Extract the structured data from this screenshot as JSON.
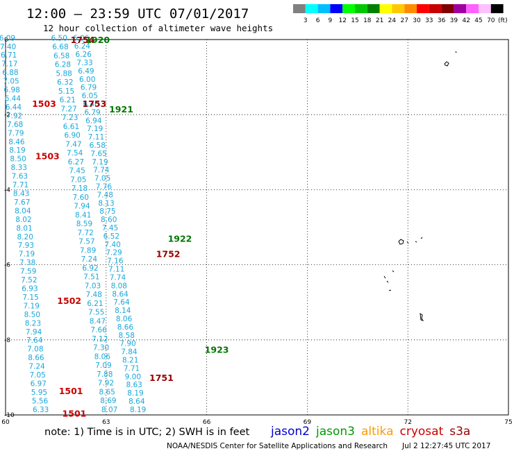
{
  "header": {
    "title": "12:00 – 23:59 UTC 07/01/2017",
    "subtitle": "12 hour collection of altimeter wave heights"
  },
  "legend": {
    "unit": "(ft)",
    "bins": [
      {
        "label": "3",
        "color": "#808080"
      },
      {
        "label": "6",
        "color": "#00ffff"
      },
      {
        "label": "9",
        "color": "#00bfff"
      },
      {
        "label": "12",
        "color": "#0000ff"
      },
      {
        "label": "15",
        "color": "#00ff00"
      },
      {
        "label": "18",
        "color": "#00c800"
      },
      {
        "label": "21",
        "color": "#008000"
      },
      {
        "label": "24",
        "color": "#ffff00"
      },
      {
        "label": "27",
        "color": "#ffc800"
      },
      {
        "label": "30",
        "color": "#ff8c00"
      },
      {
        "label": "33",
        "color": "#ff0000"
      },
      {
        "label": "36",
        "color": "#c80000"
      },
      {
        "label": "39",
        "color": "#800000"
      },
      {
        "label": "42",
        "color": "#a000a0"
      },
      {
        "label": "45",
        "color": "#ff60ff"
      },
      {
        "label": "70",
        "color": "#ffc0ff"
      },
      {
        "label": "",
        "color": "#000000"
      }
    ]
  },
  "axes": {
    "x_ticks": [
      "60",
      "63",
      "66",
      "69",
      "72",
      "75"
    ],
    "y_ticks": [
      "0",
      "-2",
      "-4",
      "-6",
      "-8",
      "-10"
    ]
  },
  "tracks": [
    {
      "satellite": "cryosat",
      "color": "#990000",
      "x0": 62.25,
      "y0": 0.05,
      "x1": 63.95,
      "y1": -9.85,
      "values": [
        "6.06",
        "6.24",
        "6.26",
        "7.33",
        "6.49",
        "6.00",
        "6.79",
        "6.05",
        "6.40",
        "6.79",
        "6.94",
        "7.19",
        "7.11",
        "6.58",
        "7.65",
        "7.19",
        "7.74",
        "7.05",
        "7.76",
        "7.48",
        "8.13",
        "8.75",
        "8.60",
        "7.45",
        "6.52",
        "7.40",
        "7.29",
        "7.16",
        "7.11",
        "7.74",
        "8.08",
        "8.64",
        "7.64",
        "8.14",
        "8.06",
        "8.66",
        "8.58",
        "7.90",
        "7.84",
        "8.21",
        "7.71",
        "9.00",
        "8.63",
        "8.19",
        "8.64",
        "8.19"
      ]
    },
    {
      "satellite": "jason3",
      "color": "#007700",
      "x0": 61.6,
      "y0": 0.05,
      "x1": 63.1,
      "y1": -9.85,
      "values": [
        "6.50",
        "6.68",
        "6.58",
        "6.28",
        "5.88",
        "6.32",
        "5.15",
        "6.21",
        "7.27",
        "7.23",
        "6.61",
        "6.90",
        "7.47",
        "7.54",
        "6.27",
        "7.45",
        "7.05",
        "7.18",
        "7.60",
        "7.94",
        "8.41",
        "8.59",
        "7.72",
        "7.57",
        "7.89",
        "7.24",
        "6.92",
        "7.51",
        "7.03",
        "7.48",
        "6.21",
        "7.55",
        "8.47",
        "7.66",
        "7.12",
        "7.30",
        "8.06",
        "7.09",
        "7.88",
        "7.92",
        "8.65",
        "8.69",
        "8.07"
      ]
    },
    {
      "satellite": "jason2",
      "color": "#cc0000",
      "x0": 60.05,
      "y0": 0.05,
      "x1": 61.05,
      "y1": -9.85,
      "values": [
        "6.09",
        "7.40",
        "6.71",
        "7.17",
        "6.88",
        "7.05",
        "6.98",
        "6.44",
        "6.44",
        "7.92",
        "7.68",
        "7.79",
        "8.46",
        "8.19",
        "8.50",
        "8.33",
        "7.63",
        "7.71",
        "8.43",
        "7.67",
        "8.04",
        "8.02",
        "8.01",
        "8.20",
        "7.93",
        "7.19",
        "7.38",
        "7.59",
        "7.52",
        "6.93",
        "7.15",
        "7.19",
        "8.50",
        "8.23",
        "7.94",
        "7.64",
        "7.08",
        "8.66",
        "7.24",
        "7.05",
        "6.97",
        "5.95",
        "5.56",
        "6.33"
      ]
    }
  ],
  "time_labels": [
    {
      "text": "1754",
      "lon": 62.3,
      "lat": 0.0,
      "color": "#990000",
      "satellite": "cryosat"
    },
    {
      "text": "1920",
      "lon": 62.75,
      "lat": 0.0,
      "color": "#007700",
      "satellite": "jason3"
    },
    {
      "text": "1503",
      "lon": 61.15,
      "lat": -1.7,
      "color": "#cc0000",
      "satellite": "jason2"
    },
    {
      "text": "1753",
      "lon": 62.65,
      "lat": -1.7,
      "color": "#990000",
      "satellite": "cryosat"
    },
    {
      "text": "1921",
      "lon": 63.45,
      "lat": -1.85,
      "color": "#007700",
      "satellite": "jason3"
    },
    {
      "text": "1503",
      "lon": 61.25,
      "lat": -3.1,
      "color": "#cc0000",
      "satellite": "jason2"
    },
    {
      "text": "1922",
      "lon": 65.2,
      "lat": -5.3,
      "color": "#007700",
      "satellite": "jason3"
    },
    {
      "text": "1752",
      "lon": 64.85,
      "lat": -5.7,
      "color": "#990000",
      "satellite": "cryosat"
    },
    {
      "text": "1502",
      "lon": 61.9,
      "lat": -6.95,
      "color": "#cc0000",
      "satellite": "jason2"
    },
    {
      "text": "1923",
      "lon": 66.3,
      "lat": -8.25,
      "color": "#007700",
      "satellite": "jason3"
    },
    {
      "text": "1751",
      "lon": 64.65,
      "lat": -9.0,
      "color": "#990000",
      "satellite": "cryosat"
    },
    {
      "text": "1501",
      "lon": 61.95,
      "lat": -9.35,
      "color": "#cc0000",
      "satellite": "jason2"
    },
    {
      "text": "1501",
      "lon": 62.05,
      "lat": -9.95,
      "color": "#cc0000",
      "satellite": "jason2"
    }
  ],
  "footer": {
    "note": "note:  1) Time is in UTC;  2) SWH is in feet",
    "satellites": [
      {
        "name": "jason2",
        "color": "#0000cc"
      },
      {
        "name": "jason3",
        "color": "#009900"
      },
      {
        "name": "altika",
        "color": "#ff9900"
      },
      {
        "name": "cryosat",
        "color": "#cc0000"
      },
      {
        "name": "s3a",
        "color": "#990000"
      }
    ],
    "credit": "NOAA/NESDIS Center for Satellite Applications and Research",
    "timestamp": "Jul  2 12:27:45 UTC 2017"
  }
}
